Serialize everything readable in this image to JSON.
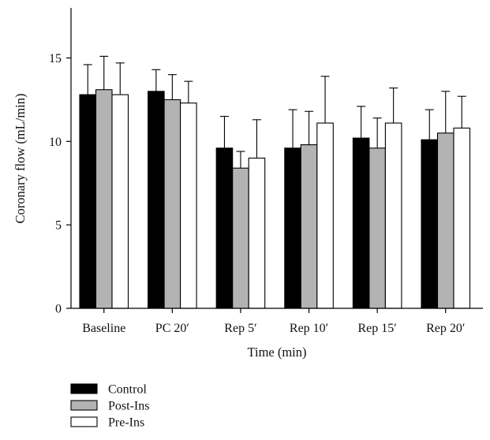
{
  "chart_data": {
    "type": "bar",
    "title": "",
    "xlabel": "Time (min)",
    "ylabel": "Coronary flow (mL/min)",
    "ylim": [
      0,
      18
    ],
    "yticks": [
      0,
      5,
      10,
      15
    ],
    "categories": [
      "Baseline",
      "PC 20′",
      "Rep 5′",
      "Rep 10′",
      "Rep 15′",
      "Rep 20′"
    ],
    "error_bars": "upper",
    "grid": false,
    "legend_position": "bottom-left",
    "series": [
      {
        "name": "Control",
        "color": "#000000",
        "values": [
          12.8,
          13.0,
          9.6,
          9.6,
          10.2,
          10.1
        ],
        "errors": [
          1.8,
          1.3,
          1.9,
          2.3,
          1.9,
          1.8
        ]
      },
      {
        "name": "Post-Ins",
        "color": "#b3b3b3",
        "values": [
          13.1,
          12.5,
          8.4,
          9.8,
          9.6,
          10.5
        ],
        "errors": [
          2.0,
          1.5,
          1.0,
          2.0,
          1.8,
          2.5
        ]
      },
      {
        "name": "Pre-Ins",
        "color": "#ffffff",
        "values": [
          12.8,
          12.3,
          9.0,
          11.1,
          11.1,
          10.8
        ],
        "errors": [
          1.9,
          1.3,
          2.3,
          2.8,
          2.1,
          1.9
        ]
      }
    ]
  }
}
